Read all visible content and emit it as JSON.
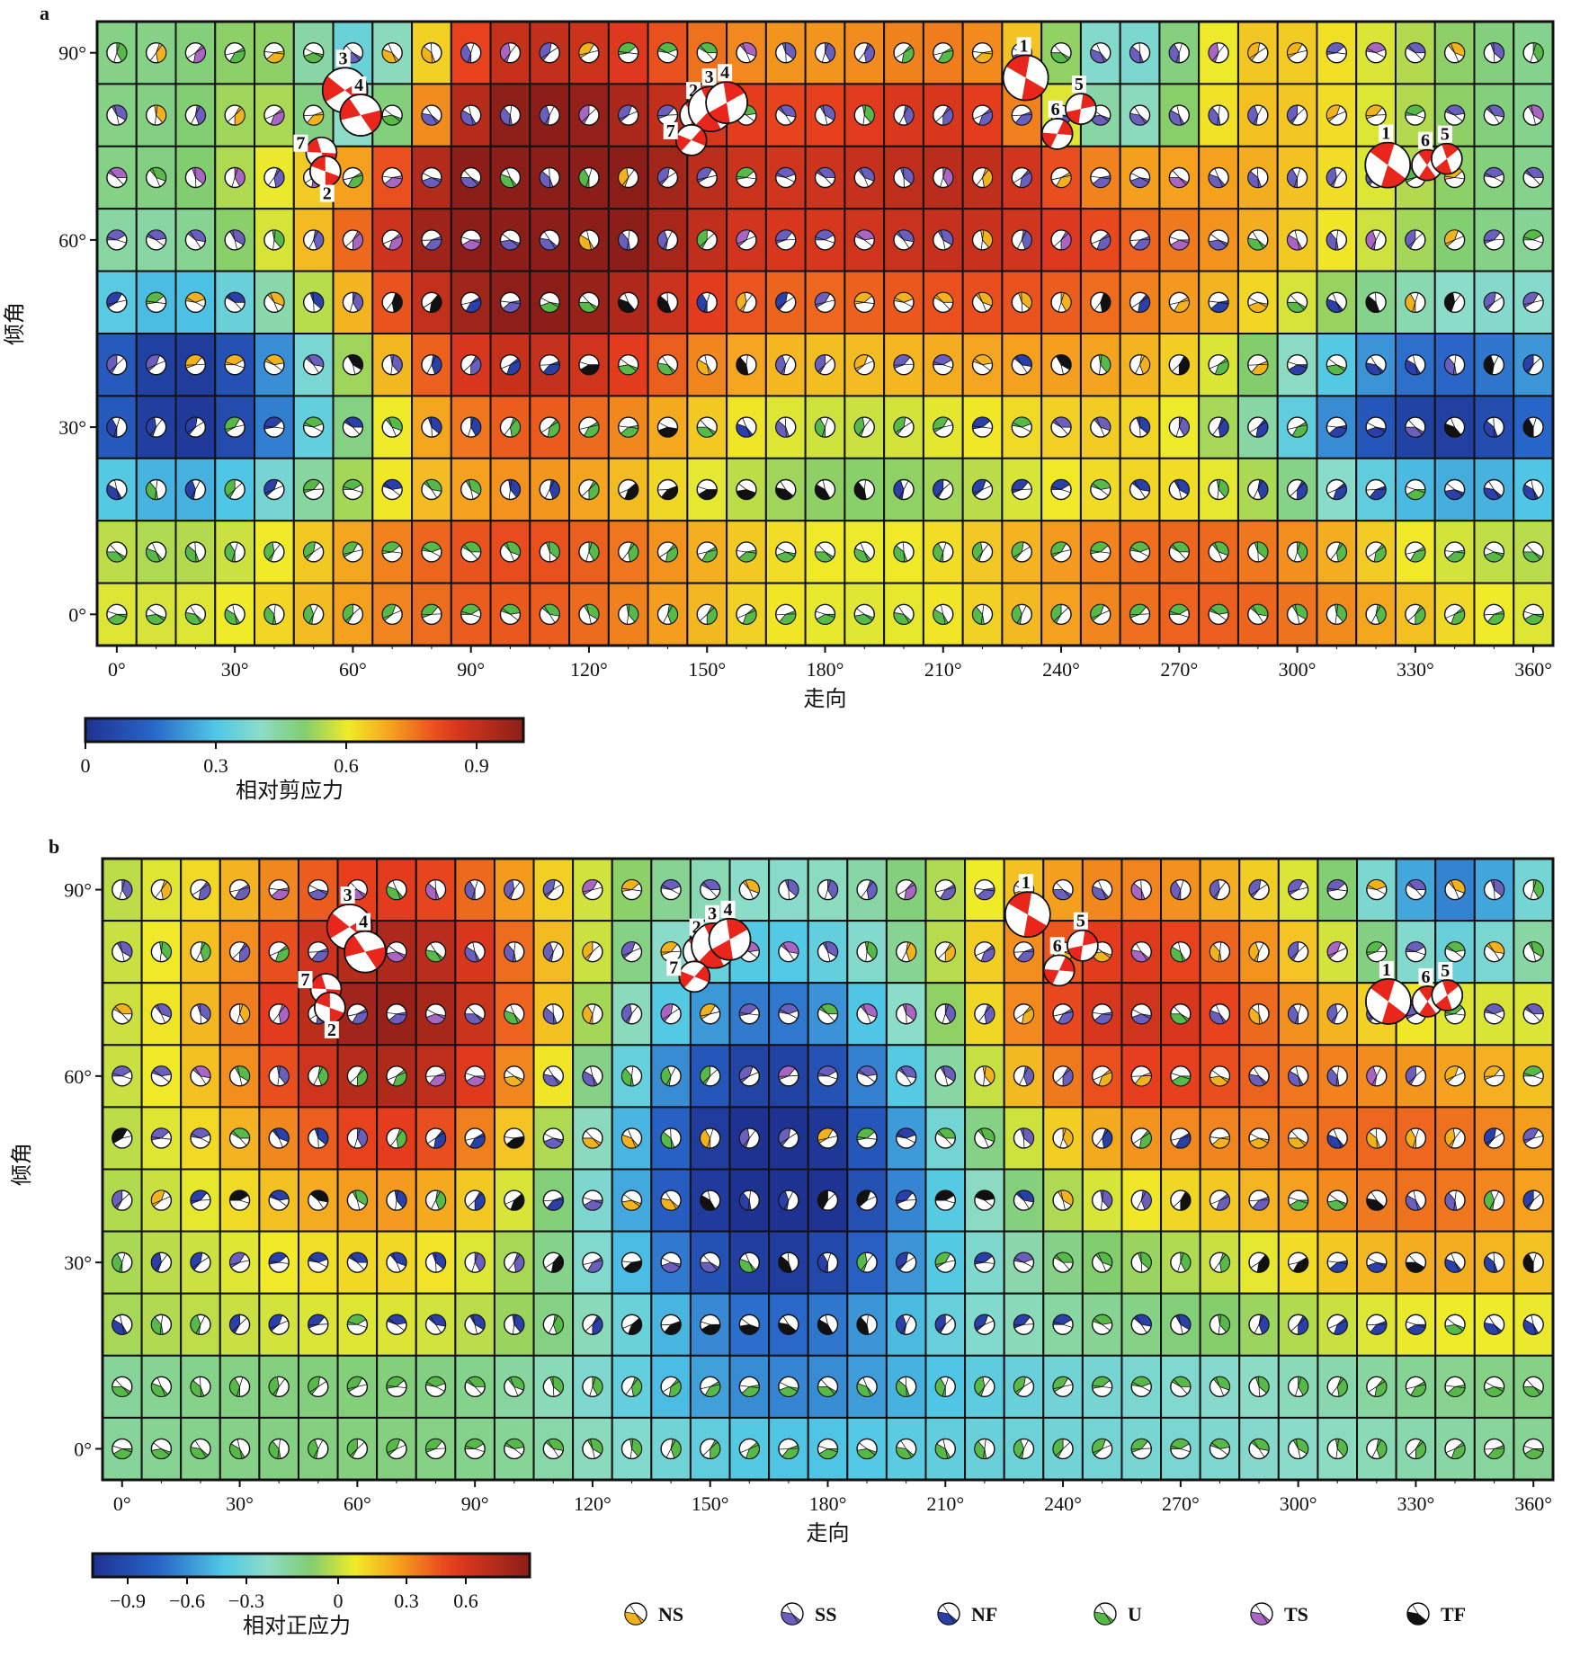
{
  "panels": [
    {
      "letter": "a",
      "ylabel": "倾角",
      "xlabel": "走向",
      "colorbar": {
        "label": "相对剪应力",
        "ticks": [
          "0",
          "0.3",
          "0.6",
          "0.9"
        ]
      }
    },
    {
      "letter": "b",
      "ylabel": "倾角",
      "xlabel": "走向",
      "colorbar": {
        "label": "相对正应力",
        "ticks": [
          "−0.9",
          "−0.6",
          "−0.3",
          "0",
          "0.3",
          "0.6"
        ]
      }
    }
  ],
  "legend": [
    {
      "code": "NS",
      "color": "#f2b21d"
    },
    {
      "code": "SS",
      "color": "#6a5fbd"
    },
    {
      "code": "NF",
      "color": "#2b3fa8"
    },
    {
      "code": "U",
      "color": "#56b948"
    },
    {
      "code": "TS",
      "color": "#a866c2"
    },
    {
      "code": "TF",
      "color": "#111111"
    }
  ],
  "colors": {
    "beachball_highlight": "#e8261c",
    "grid_line": "#111111"
  },
  "chart_data": [
    {
      "type": "heatmap",
      "panel": "a",
      "quantity": "相对剪应力",
      "xlabel": "走向",
      "ylabel": "倾角",
      "x_ticks": [
        "0°",
        "30°",
        "60°",
        "90°",
        "120°",
        "150°",
        "180°",
        "210°",
        "240°",
        "270°",
        "300°",
        "330°",
        "360°"
      ],
      "y_ticks": [
        "0°",
        "30°",
        "60°",
        "90°"
      ],
      "x_range": [
        0,
        360
      ],
      "y_range": [
        0,
        90
      ],
      "grid": {
        "strike_step": 10,
        "dip_step": 10
      },
      "colorbar_range": [
        0,
        1
      ],
      "earthquakes": [
        {
          "label": "1",
          "strike": 231,
          "dip": 86
        },
        {
          "label": "2",
          "strike": 147,
          "dip": 80
        },
        {
          "label": "3",
          "strike": 151,
          "dip": 81
        },
        {
          "label": "4",
          "strike": 155,
          "dip": 82
        },
        {
          "label": "5",
          "strike": 245,
          "dip": 81
        },
        {
          "label": "6",
          "strike": 239,
          "dip": 77
        },
        {
          "label": "7",
          "strike": 146,
          "dip": 76
        },
        {
          "label": "3",
          "strike": 58,
          "dip": 84
        },
        {
          "label": "4",
          "strike": 62,
          "dip": 80
        },
        {
          "label": "7",
          "strike": 52,
          "dip": 74
        },
        {
          "label": "2",
          "strike": 53,
          "dip": 71
        },
        {
          "label": "1",
          "strike": 323,
          "dip": 72
        },
        {
          "label": "6",
          "strike": 333,
          "dip": 72
        },
        {
          "label": "5",
          "strike": 338,
          "dip": 73
        }
      ]
    },
    {
      "type": "heatmap",
      "panel": "b",
      "quantity": "相对正应力",
      "xlabel": "走向",
      "ylabel": "倾角",
      "x_ticks": [
        "0°",
        "30°",
        "60°",
        "90°",
        "120°",
        "150°",
        "180°",
        "210°",
        "240°",
        "270°",
        "300°",
        "330°",
        "360°"
      ],
      "y_ticks": [
        "0°",
        "30°",
        "60°",
        "90°"
      ],
      "x_range": [
        0,
        360
      ],
      "y_range": [
        0,
        90
      ],
      "grid": {
        "strike_step": 10,
        "dip_step": 10
      },
      "colorbar_range": [
        -1.1,
        0.8
      ],
      "earthquakes": [
        {
          "label": "1",
          "strike": 231,
          "dip": 86
        },
        {
          "label": "2",
          "strike": 147,
          "dip": 80
        },
        {
          "label": "3",
          "strike": 151,
          "dip": 81
        },
        {
          "label": "4",
          "strike": 155,
          "dip": 82
        },
        {
          "label": "5",
          "strike": 245,
          "dip": 81
        },
        {
          "label": "6",
          "strike": 239,
          "dip": 77
        },
        {
          "label": "7",
          "strike": 146,
          "dip": 76
        },
        {
          "label": "3",
          "strike": 58,
          "dip": 84
        },
        {
          "label": "4",
          "strike": 62,
          "dip": 80
        },
        {
          "label": "7",
          "strike": 52,
          "dip": 74
        },
        {
          "label": "2",
          "strike": 53,
          "dip": 71
        },
        {
          "label": "1",
          "strike": 323,
          "dip": 72
        },
        {
          "label": "6",
          "strike": 333,
          "dip": 72
        },
        {
          "label": "5",
          "strike": 338,
          "dip": 73
        }
      ]
    }
  ]
}
